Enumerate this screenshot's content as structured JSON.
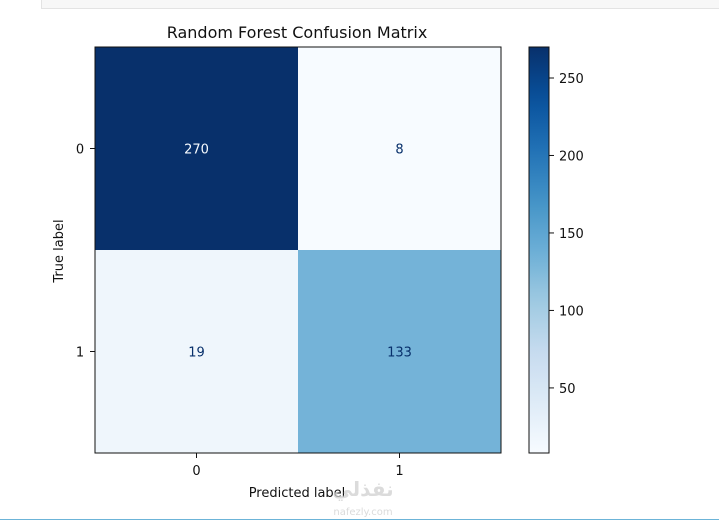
{
  "chart_data": {
    "type": "heatmap",
    "title": "Random Forest Confusion Matrix",
    "xlabel": "Predicted label",
    "ylabel": "True label",
    "x_categories": [
      "0",
      "1"
    ],
    "y_categories": [
      "0",
      "1"
    ],
    "matrix": [
      [
        270,
        8
      ],
      [
        19,
        133
      ]
    ],
    "colormap": "Blues",
    "colorbar": {
      "range": [
        8,
        270
      ],
      "ticks": [
        50,
        100,
        150,
        200,
        250
      ]
    },
    "grid": false
  },
  "watermark": {
    "logo_text": "نفذلي",
    "domain_text": "nafezly.com"
  },
  "colors": {
    "blues_low": "#f7fbff",
    "blues_high": "#08306b",
    "text_on_dark": "#f7fbff",
    "text_on_light": "#08306b",
    "bottom_rule": "#6cb4d8"
  }
}
